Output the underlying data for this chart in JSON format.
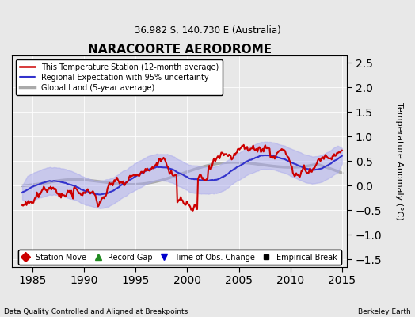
{
  "title": "NARACOORTE AERODROME",
  "subtitle": "36.982 S, 140.730 E (Australia)",
  "ylabel": "Temperature Anomaly (°C)",
  "xlabel_footer_left": "Data Quality Controlled and Aligned at Breakpoints",
  "xlabel_footer_right": "Berkeley Earth",
  "xlim": [
    1983,
    2015.5
  ],
  "ylim": [
    -1.65,
    2.65
  ],
  "yticks": [
    -1.5,
    -1.0,
    -0.5,
    0,
    0.5,
    1.0,
    1.5,
    2.0,
    2.5
  ],
  "xticks": [
    1985,
    1990,
    1995,
    2000,
    2005,
    2010,
    2015
  ],
  "bg_color": "#e8e8e8",
  "plot_bg_color": "#e8e8e8",
  "legend_items": [
    {
      "label": "This Temperature Station (12-month average)",
      "color": "#cc0000",
      "lw": 1.8
    },
    {
      "label": "Regional Expectation with 95% uncertainty",
      "color": "#3333cc",
      "lw": 1.5
    },
    {
      "label": "Global Land (5-year average)",
      "color": "#aaaaaa",
      "lw": 2.5
    }
  ],
  "marker_items": [
    {
      "label": "Station Move",
      "color": "#cc0000",
      "marker": "D"
    },
    {
      "label": "Record Gap",
      "color": "#228B22",
      "marker": "^"
    },
    {
      "label": "Time of Obs. Change",
      "color": "#0000cc",
      "marker": "v"
    },
    {
      "label": "Empirical Break",
      "color": "#000000",
      "marker": "s"
    }
  ]
}
